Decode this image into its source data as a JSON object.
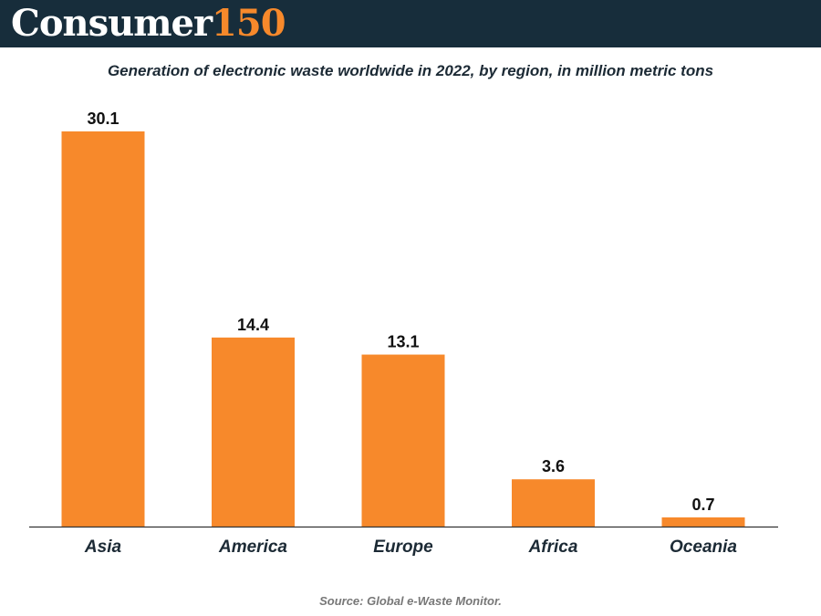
{
  "brand": {
    "name": "Consumer",
    "number": "150"
  },
  "footer": {
    "source": "Source: Global e-Waste Monitor."
  },
  "colors": {
    "bar": "#f7892b",
    "header": "#172d3b",
    "text": "#1c2a35",
    "axis": "#333333"
  },
  "chart_data": {
    "type": "bar",
    "title": "Generation of electronic waste worldwide in 2022, by region, in million metric tons",
    "categories": [
      "Asia",
      "America",
      "Europe",
      "Africa",
      "Oceania"
    ],
    "values": [
      30.1,
      14.4,
      13.1,
      3.6,
      0.7
    ],
    "value_labels": [
      "30.1",
      "14.4",
      "13.1",
      "3.6",
      "0.7"
    ],
    "xlabel": "",
    "ylabel": "",
    "ylim": [
      0,
      30.1
    ],
    "grid": false,
    "legend": "none"
  }
}
